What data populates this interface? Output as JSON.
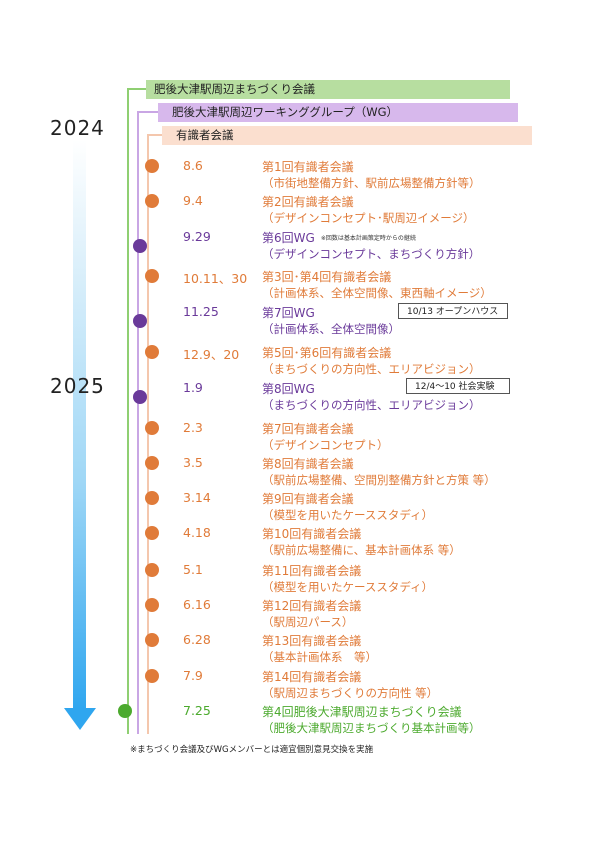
{
  "bands": [
    {
      "label": "肥後大津駅周辺まちづくり会議",
      "color": "#b7dea0"
    },
    {
      "label": "肥後大津駅周辺ワーキンググループ（WG）",
      "color": "#d7b8ec"
    },
    {
      "label": "有識者会議",
      "color": "#fbdfcf"
    }
  ],
  "years": [
    "2024",
    "2025"
  ],
  "colors": {
    "expert": "#e07b39",
    "wg": "#6a3a9a",
    "council": "#4caa2e"
  },
  "events": [
    {
      "date": "8.6",
      "title": "第1回有識者会議",
      "detail": "（市街地整備方針、駅前広場整備方針等）",
      "kind": "expert"
    },
    {
      "date": "9.4",
      "title": "第2回有識者会議",
      "detail": "（デザインコンセプト･駅周辺イメージ）",
      "kind": "expert"
    },
    {
      "date": "9.29",
      "title": "第6回WG",
      "note": "※回数は基本計画策定時からの継続",
      "detail": "（デザインコンセプト、まちづくり方針）",
      "kind": "wg"
    },
    {
      "date": "10.11、30",
      "title": "第3回･第4回有識者会議",
      "detail": "（計画体系、全体空間像、東西軸イメージ）",
      "kind": "expert"
    },
    {
      "date": "11.25",
      "title": "第7回WG",
      "detail": "（計画体系、全体空間像）",
      "kind": "wg",
      "box": "10/13 オープンハウス"
    },
    {
      "date": "12.9、20",
      "title": "第5回･第6回有識者会議",
      "detail": "（まちづくりの方向性、エリアビジョン）",
      "kind": "expert"
    },
    {
      "date": "1.9",
      "title": "第8回WG",
      "detail": "（まちづくりの方向性、エリアビジョン）",
      "kind": "wg",
      "box": "12/4～10 社会実験"
    },
    {
      "date": "2.3",
      "title": "第7回有識者会議",
      "detail": "（デザインコンセプト）",
      "kind": "expert"
    },
    {
      "date": "3.5",
      "title": "第8回有識者会議",
      "detail": "（駅前広場整備、空間別整備方針と方策 等）",
      "kind": "expert"
    },
    {
      "date": "3.14",
      "title": "第9回有識者会議",
      "detail": "（模型を用いたケーススタディ）",
      "kind": "expert"
    },
    {
      "date": "4.18",
      "title": "第10回有識者会議",
      "detail": "（駅前広場整備に、基本計画体系 等）",
      "kind": "expert"
    },
    {
      "date": "5.1",
      "title": "第11回有識者会議",
      "detail": "（模型を用いたケーススタディ）",
      "kind": "expert"
    },
    {
      "date": "6.16",
      "title": "第12回有識者会議",
      "detail": "（駅周辺パース）",
      "kind": "expert"
    },
    {
      "date": "6.28",
      "title": "第13回有識者会議",
      "detail": "（基本計画体系　等）",
      "kind": "expert"
    },
    {
      "date": "7.9",
      "title": "第14回有識者会議",
      "detail": "（駅周辺まちづくりの方向性 等）",
      "kind": "expert"
    },
    {
      "date": "7.25",
      "title": "第4回肥後大津駅周辺まちづくり会議",
      "detail": "（肥後大津駅周辺まちづくり基本計画等）",
      "kind": "council"
    }
  ],
  "footnote": "※まちづくり会議及びWGメンバーとは適宜個別意見交換を実施"
}
